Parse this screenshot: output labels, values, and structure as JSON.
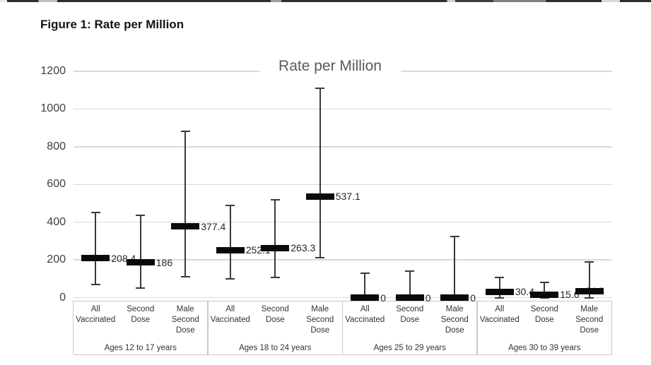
{
  "figure_caption": "Figure 1: Rate per Million",
  "chart_data": {
    "type": "bar",
    "subtype": "bar-with-error-whiskers",
    "title": "Rate per Million",
    "xlabel": "",
    "ylabel": "",
    "ylim": [
      0,
      1200
    ],
    "yticks": [
      0,
      200,
      400,
      600,
      800,
      1000,
      1200
    ],
    "grid": true,
    "legend": false,
    "group_labels": [
      "Ages 12 to 17 years",
      "Ages 18 to 24 years",
      "Ages 25 to 29 years",
      "Ages 30 to 39 years"
    ],
    "categories_per_group": [
      "All Vaccinated",
      "Second Dose",
      "Male Second Dose"
    ],
    "points": [
      {
        "group": "Ages 12 to 17 years",
        "category": "All Vaccinated",
        "value": 208.4,
        "label": "208.4",
        "whisker_low": 70,
        "whisker_high": 450
      },
      {
        "group": "Ages 12 to 17 years",
        "category": "Second Dose",
        "value": 186,
        "label": "186",
        "whisker_low": 50,
        "whisker_high": 435
      },
      {
        "group": "Ages 12 to 17 years",
        "category": "Male Second Dose",
        "value": 377.4,
        "label": "377.4",
        "whisker_low": 110,
        "whisker_high": 880
      },
      {
        "group": "Ages 18 to 24 years",
        "category": "All Vaccinated",
        "value": 252.1,
        "label": "252.1",
        "whisker_low": 100,
        "whisker_high": 490
      },
      {
        "group": "Ages 18 to 24 years",
        "category": "Second Dose",
        "value": 263.3,
        "label": "263.3",
        "whisker_low": 105,
        "whisker_high": 520
      },
      {
        "group": "Ages 18 to 24 years",
        "category": "Male Second Dose",
        "value": 537.1,
        "label": "537.1",
        "whisker_low": 210,
        "whisker_high": 1110
      },
      {
        "group": "Ages 25 to 29 years",
        "category": "All Vaccinated",
        "value": 0,
        "label": "0",
        "whisker_low": 0,
        "whisker_high": 130
      },
      {
        "group": "Ages 25 to 29 years",
        "category": "Second Dose",
        "value": 0,
        "label": "0",
        "whisker_low": 0,
        "whisker_high": 140
      },
      {
        "group": "Ages 25 to 29 years",
        "category": "Male Second Dose",
        "value": 0,
        "label": "0",
        "whisker_low": 0,
        "whisker_high": 325
      },
      {
        "group": "Ages 30 to 39 years",
        "category": "All Vaccinated",
        "value": 30.4,
        "label": "30.4",
        "whisker_low": 0,
        "whisker_high": 105
      },
      {
        "group": "Ages 30 to 39 years",
        "category": "Second Dose",
        "value": 15.6,
        "label": "15.6",
        "whisker_low": 0,
        "whisker_high": 80
      },
      {
        "group": "Ages 30 to 39 years",
        "category": "Male Second Dose",
        "value": 34.3,
        "label": "34.3",
        "whisker_low": 0,
        "whisker_high": 190,
        "label_dx": -6
      }
    ],
    "colors": {
      "bar": "#0a0a0a",
      "whisker": "#3a3a3a",
      "gridline": "#d9d9d9",
      "axis_box_border": "#c8c8c8",
      "title_text": "#595959",
      "tick_text": "#404040",
      "data_label_text": "#262626",
      "category_text": "#333333"
    }
  }
}
